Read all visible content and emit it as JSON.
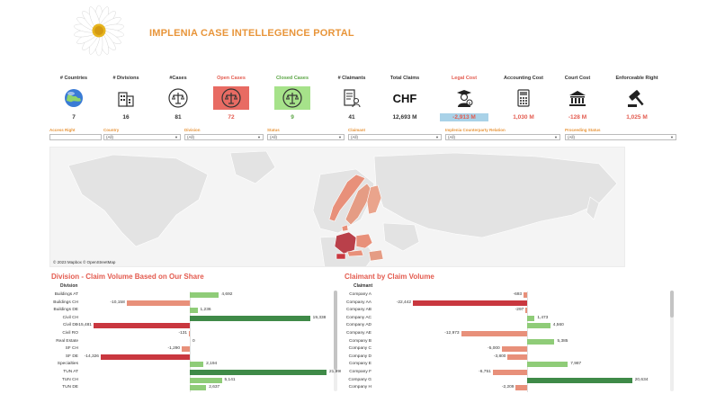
{
  "header": {
    "title": "IMPLENIA CASE INTELLEGENCE PORTAL",
    "logo_icon": "daisy-flower-icon"
  },
  "kpis": [
    {
      "label": "# Countries",
      "value": "7",
      "icon": "globe-icon",
      "label_color": "#333333",
      "value_color": "#333333",
      "bg": ""
    },
    {
      "label": "# Divisions",
      "value": "16",
      "icon": "building-icon",
      "label_color": "#333333",
      "value_color": "#333333",
      "bg": ""
    },
    {
      "label": "#Cases",
      "value": "81",
      "icon": "scales-icon",
      "label_color": "#333333",
      "value_color": "#333333",
      "bg": ""
    },
    {
      "label": "Open Cases",
      "value": "72",
      "icon": "scales-icon",
      "label_color": "#e35b4f",
      "value_color": "#e35b4f",
      "bg": "#e86b63"
    },
    {
      "label": "Closed Cases",
      "value": "9",
      "icon": "scales-icon",
      "label_color": "#5aa544",
      "value_color": "#5aa544",
      "bg": "#a6e28a"
    },
    {
      "label": "# Claimants",
      "value": "41",
      "icon": "claimant-document-icon",
      "label_color": "#333333",
      "value_color": "#333333",
      "bg": ""
    },
    {
      "label": "Total Claims",
      "value": "12,693 M",
      "icon": "chf-currency-icon",
      "label_color": "#333333",
      "value_color": "#333333",
      "bg": ""
    },
    {
      "label": "Legal Cost",
      "value": "-2,913 M",
      "icon": "lawyer-icon",
      "label_color": "#e35b4f",
      "value_color": "#e35b4f",
      "bg": "",
      "value_bg": "#a9d2e8"
    },
    {
      "label": "Accounting Cost",
      "value": "1,030 M",
      "icon": "calculator-icon",
      "label_color": "#333333",
      "value_color": "#e35b4f",
      "bg": ""
    },
    {
      "label": "Court Cost",
      "value": "-128 M",
      "icon": "courthouse-icon",
      "label_color": "#333333",
      "value_color": "#e35b4f",
      "bg": ""
    },
    {
      "label": "Enforceable Right",
      "value": "1,025 M",
      "icon": "gavel-icon",
      "label_color": "#333333",
      "value_color": "#e35b4f",
      "bg": ""
    }
  ],
  "filters": [
    {
      "label": "Access Right",
      "value": ""
    },
    {
      "label": "Country",
      "value": "(All)"
    },
    {
      "label": "Division",
      "value": "(All)"
    },
    {
      "label": "Status",
      "value": "(All)"
    },
    {
      "label": "Claimant",
      "value": "(All)"
    },
    {
      "label": "Implenia Counterparty Relation",
      "value": "(All)"
    },
    {
      "label": "Proceeding Status",
      "value": "(All)"
    }
  ],
  "map": {
    "credit": "© 2023 Mapbox  © OpenStreetMap"
  },
  "division_chart": {
    "title": "Division - Claim Volume Based on Our Share",
    "column_header": "Division",
    "rows": [
      {
        "label": "Buildings AT",
        "value": 4692,
        "text": "4,692"
      },
      {
        "label": "Buildings CH",
        "value": -10158,
        "text": "-10,158"
      },
      {
        "label": "Buildings DE",
        "value": 1236,
        "text": "1,236"
      },
      {
        "label": "Civil CH",
        "value": 19338,
        "text": "19,338"
      },
      {
        "label": "Civil DE",
        "value": -15481,
        "text": "-15,481"
      },
      {
        "label": "Civil RO",
        "value": -131,
        "text": "-131"
      },
      {
        "label": "Real Estate",
        "value": 0,
        "text": "0"
      },
      {
        "label": "SF CH",
        "value": -1290,
        "text": "-1,290"
      },
      {
        "label": "SF DE",
        "value": -14326,
        "text": "-14,326"
      },
      {
        "label": "Specialties",
        "value": 2194,
        "text": "2,194"
      },
      {
        "label": "TUN AT",
        "value": 21990,
        "text": "21,990"
      },
      {
        "label": "TUN CH",
        "value": 5141,
        "text": "5,141"
      },
      {
        "label": "TUN DE",
        "value": 2637,
        "text": "2,637"
      }
    ]
  },
  "claimant_chart": {
    "title": "Claimant by Claim Volume",
    "column_header": "Claimant",
    "rows": [
      {
        "label": "Company A",
        "value": -693,
        "text": "-693"
      },
      {
        "label": "Company AA",
        "value": -22442,
        "text": "-22,442"
      },
      {
        "label": "Company AB",
        "value": -297,
        "text": "-297"
      },
      {
        "label": "Company AC",
        "value": 1473,
        "text": "1,473"
      },
      {
        "label": "Company AD",
        "value": 4560,
        "text": "4,560"
      },
      {
        "label": "Company AE",
        "value": -12973,
        "text": "-12,973"
      },
      {
        "label": "Company B",
        "value": 5385,
        "text": "5,385"
      },
      {
        "label": "Company C",
        "value": -5000,
        "text": "-5,000"
      },
      {
        "label": "Company D",
        "value": -3800,
        "text": "-3,800"
      },
      {
        "label": "Company E",
        "value": 7987,
        "text": "7,987"
      },
      {
        "label": "Company F",
        "value": -6751,
        "text": "-6,751"
      },
      {
        "label": "Company G",
        "value": 20634,
        "text": "20,634"
      },
      {
        "label": "Company H",
        "value": -2209,
        "text": "-2,209"
      }
    ]
  },
  "colors": {
    "accent_orange": "#e8953a",
    "negative_strong": "#c9373f",
    "negative_light": "#e8907a",
    "positive_strong": "#3f8a48",
    "positive_light": "#8fcc78"
  }
}
